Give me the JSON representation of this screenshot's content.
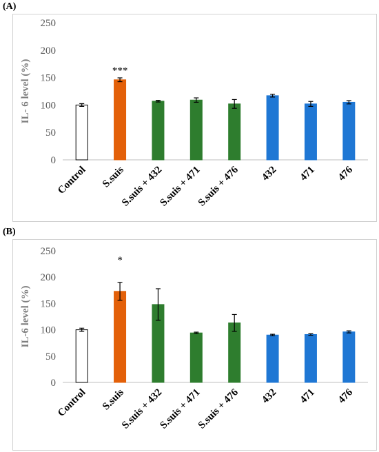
{
  "panels": [
    {
      "label": "(A)"
    },
    {
      "label": "(B)"
    }
  ],
  "colors": {
    "control": "#ffffff",
    "ssuis": "#E36009",
    "combo": "#2E7D2E",
    "phage": "#1F77D4",
    "axis": "#bfbfbf",
    "errorbar": "#000000"
  },
  "chart_data": [
    {
      "type": "bar",
      "title": "",
      "xlabel": "",
      "ylabel": "IL- 6  level (%)",
      "ylim": [
        0,
        250
      ],
      "yticks": [
        "0",
        "50",
        "100",
        "150",
        "200",
        "250"
      ],
      "grid": false,
      "categories": [
        "Control",
        "S.suis",
        "S.suis + 432",
        "S.suis + 471",
        "S.suis + 476",
        "432",
        "471",
        "476"
      ],
      "values": [
        100,
        146,
        107,
        109,
        102,
        117,
        102,
        105
      ],
      "errors": [
        2.5,
        3.5,
        1.5,
        4,
        8,
        2.5,
        4.5,
        3
      ],
      "bar_colors": [
        "control",
        "ssuis",
        "combo",
        "combo",
        "combo",
        "phage",
        "phage",
        "phage"
      ],
      "significance": [
        "",
        "***",
        "",
        "",
        "",
        "",
        "",
        ""
      ]
    },
    {
      "type": "bar",
      "title": "",
      "xlabel": "",
      "ylabel": "IL-6 level (%)",
      "ylim": [
        0,
        250
      ],
      "yticks": [
        "0",
        "50",
        "100",
        "150",
        "200",
        "250"
      ],
      "grid": false,
      "categories": [
        "Control",
        "S.suis",
        "S.suis + 432",
        "S.suis + 471",
        "S.suis + 476",
        "432",
        "471",
        "476"
      ],
      "values": [
        100,
        173,
        148,
        94,
        113,
        90,
        91,
        96
      ],
      "errors": [
        3,
        17,
        30,
        1.5,
        16,
        1.5,
        1.5,
        2
      ],
      "bar_colors": [
        "control",
        "ssuis",
        "combo",
        "combo",
        "combo",
        "phage",
        "phage",
        "phage"
      ],
      "significance": [
        "",
        "*",
        "",
        "",
        "",
        "",
        "",
        ""
      ]
    }
  ]
}
